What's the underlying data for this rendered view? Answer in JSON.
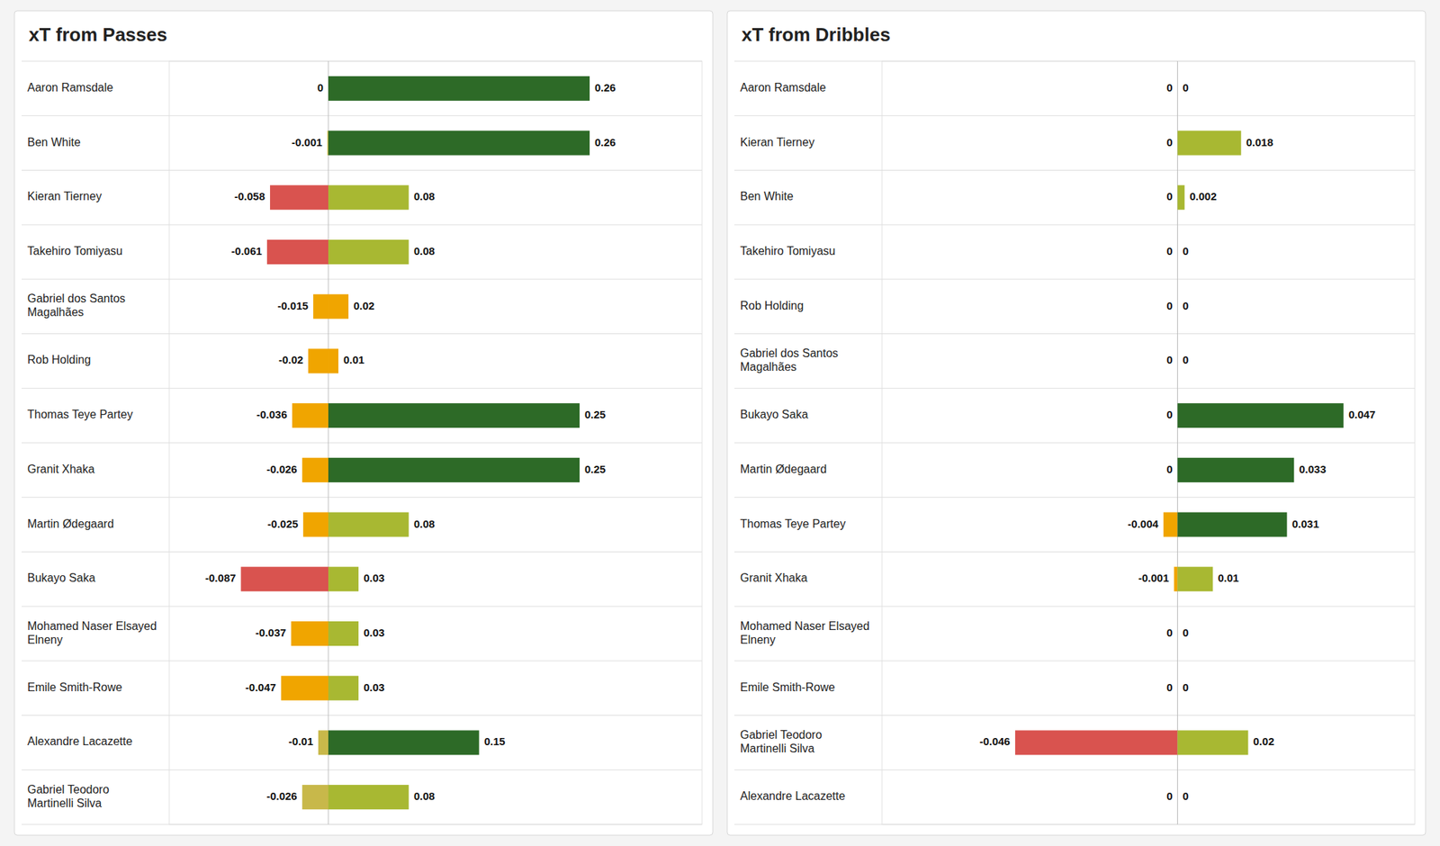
{
  "chart_data": [
    {
      "type": "bar",
      "orientation": "horizontal",
      "title": "xT from Passes",
      "categories": [
        "Aaron Ramsdale",
        "Ben White",
        "Kieran Tierney",
        "Takehiro Tomiyasu",
        "Gabriel dos Santos\nMagalhães",
        "Rob Holding",
        "Thomas Teye Partey",
        "Granit Xhaka",
        "Martin Ødegaard",
        "Bukayo Saka",
        "Mohamed Naser Elsayed\nElneny",
        "Emile Smith-Rowe",
        "Alexandre Lacazette",
        "Gabriel Teodoro\nMartinelli Silva"
      ],
      "series": [
        {
          "values": [
            0,
            -0.001,
            -0.058,
            -0.061,
            -0.015,
            -0.02,
            -0.036,
            -0.026,
            -0.025,
            -0.087,
            -0.037,
            -0.047,
            -0.01,
            -0.026
          ],
          "colors": [
            "#2d6a27",
            "#c8b84a",
            "#d9534f",
            "#d9534f",
            "#f0a500",
            "#f0a500",
            "#f0a500",
            "#f0a500",
            "#f0a500",
            "#d9534f",
            "#f0a500",
            "#f0a500",
            "#c8b84a",
            "#c8b84a"
          ]
        },
        {
          "values": [
            0.26,
            0.26,
            0.08,
            0.08,
            0.02,
            0.01,
            0.25,
            0.25,
            0.08,
            0.03,
            0.03,
            0.03,
            0.15,
            0.08
          ],
          "colors": [
            "#2d6a27",
            "#2d6a27",
            "#a8b832",
            "#a8b832",
            "#f0a500",
            "#f0a500",
            "#2d6a27",
            "#2d6a27",
            "#a8b832",
            "#a8b832",
            "#a8b832",
            "#a8b832",
            "#2d6a27",
            "#a8b832"
          ]
        }
      ],
      "xlim": [
        -0.15834,
        0.3718
      ],
      "data_labels": true,
      "tick_labels": false,
      "grid": false
    },
    {
      "type": "bar",
      "orientation": "horizontal",
      "title": "xT from Dribbles",
      "categories": [
        "Aaron Ramsdale",
        "Kieran Tierney",
        "Ben White",
        "Takehiro Tomiyasu",
        "Rob Holding",
        "Gabriel dos Santos\nMagalhães",
        "Bukayo Saka",
        "Martin Ødegaard",
        "Thomas Teye Partey",
        "Granit Xhaka",
        "Mohamed Naser Elsayed\nElneny",
        "Emile Smith-Rowe",
        "Gabriel Teodoro\nMartinelli Silva",
        "Alexandre Lacazette"
      ],
      "series": [
        {
          "values": [
            0,
            0,
            0,
            0,
            0,
            0,
            0,
            0,
            -0.004,
            -0.001,
            0,
            0,
            -0.046,
            0
          ],
          "colors": [
            "#2d6a27",
            "#2d6a27",
            "#2d6a27",
            "#2d6a27",
            "#2d6a27",
            "#2d6a27",
            "#2d6a27",
            "#2d6a27",
            "#f0a500",
            "#f0a500",
            "#f0a500",
            "#f0a500",
            "#d9534f",
            "#c8b84a"
          ]
        },
        {
          "values": [
            0,
            0.018,
            0.002,
            0,
            0,
            0,
            0.047,
            0.033,
            0.031,
            0.01,
            0,
            0,
            0.02,
            0
          ],
          "colors": [
            "#2d6a27",
            "#a8b832",
            "#a8b832",
            "#2d6a27",
            "#2d6a27",
            "#2d6a27",
            "#2d6a27",
            "#2d6a27",
            "#2d6a27",
            "#a8b832",
            "#2d6a27",
            "#2d6a27",
            "#a8b832",
            "#2d6a27"
          ]
        }
      ],
      "xlim": [
        -0.08372,
        0.06721
      ],
      "data_labels": true,
      "tick_labels": false,
      "grid": false
    }
  ]
}
